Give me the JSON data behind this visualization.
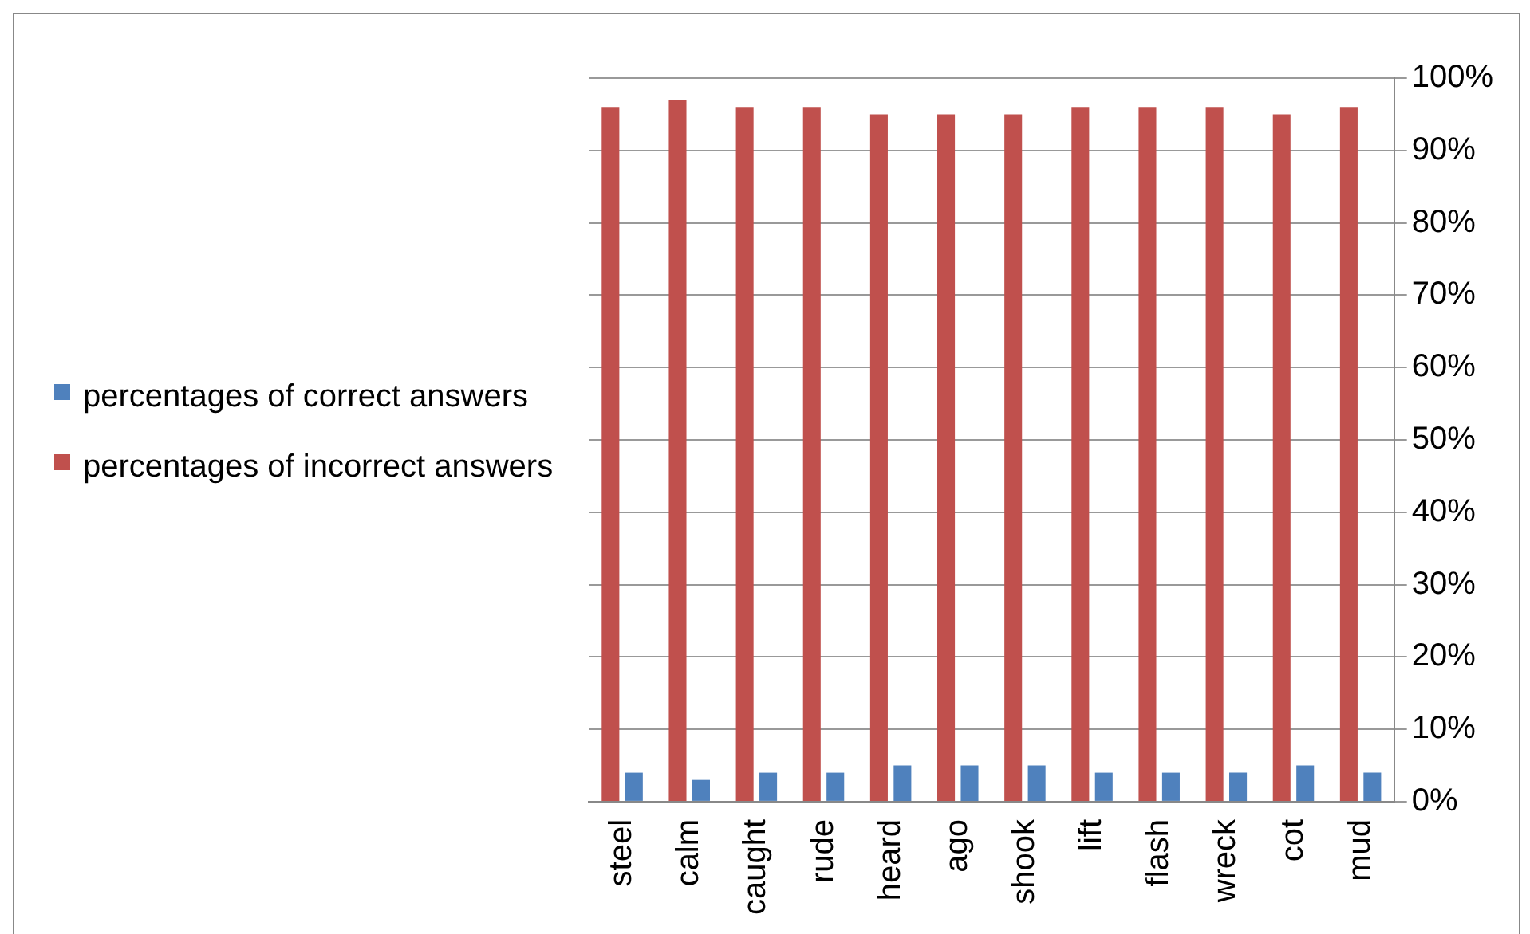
{
  "chart_data": {
    "type": "bar",
    "categories": [
      "steel",
      "calm",
      "caught",
      "rude",
      "heard",
      "ago",
      "shook",
      "lift",
      "flash",
      "wreck",
      "cot",
      "mud"
    ],
    "series": [
      {
        "name": "percentages of correct answers",
        "color": "#4f81bd",
        "values": [
          4,
          3,
          4,
          4,
          5,
          5,
          5,
          4,
          4,
          4,
          5,
          4
        ]
      },
      {
        "name": "percentages of incorrect answers",
        "color": "#c0504d",
        "values": [
          96,
          97,
          96,
          96,
          95,
          95,
          95,
          96,
          96,
          96,
          95,
          96
        ]
      }
    ],
    "ylim": [
      0,
      100
    ],
    "yticks": [
      {
        "value": 0,
        "label": "0%"
      },
      {
        "value": 10,
        "label": "10%"
      },
      {
        "value": 20,
        "label": "20%"
      },
      {
        "value": 30,
        "label": "30%"
      },
      {
        "value": 40,
        "label": "40%"
      },
      {
        "value": 50,
        "label": "50%"
      },
      {
        "value": 60,
        "label": "60%"
      },
      {
        "value": 70,
        "label": "70%"
      },
      {
        "value": 80,
        "label": "80%"
      },
      {
        "value": 90,
        "label": "90%"
      },
      {
        "value": 100,
        "label": "100%"
      }
    ],
    "grid": "y",
    "legend": "left"
  }
}
